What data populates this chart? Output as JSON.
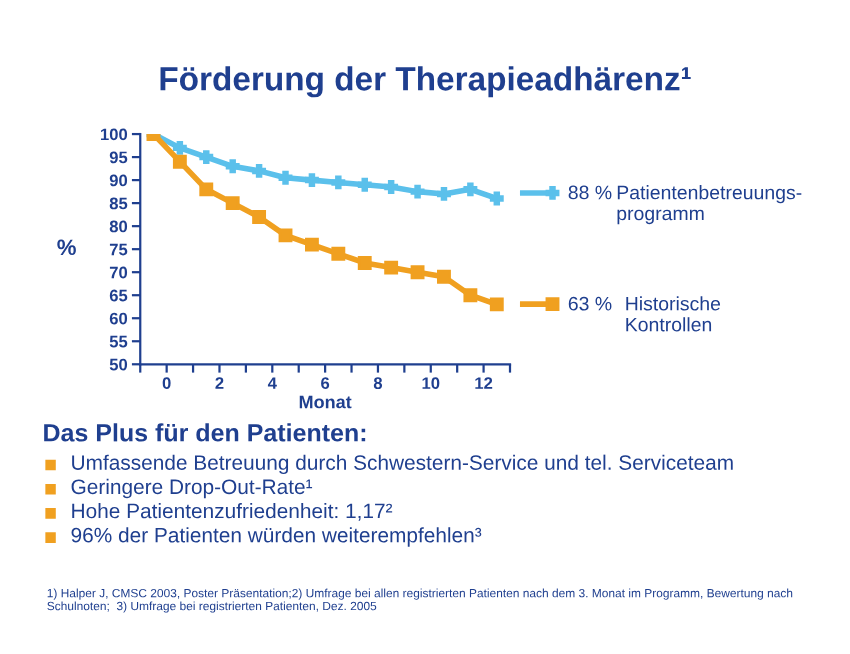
{
  "chart_data": {
    "type": "line",
    "title": "Förderung der Therapieadhärenz¹",
    "xlabel": "Monat",
    "ylabel": "%",
    "x": [
      -0.5,
      0.5,
      1.5,
      2.5,
      3.5,
      4.5,
      5.5,
      6.5,
      7.5,
      8.5,
      9.5,
      10.5,
      11.5,
      12.5
    ],
    "series": [
      {
        "name": "Patientenbetreuungs-\nprogramm",
        "color": "#5bc0eb",
        "marker": "cross",
        "values": [
          100,
          97,
          95,
          93,
          92,
          90.5,
          90,
          89.5,
          89,
          88.5,
          87.5,
          87,
          88,
          86
        ]
      },
      {
        "name": "Historische\nKontrollen",
        "color": "#f0a020",
        "marker": "square",
        "values": [
          100,
          94,
          88,
          85,
          82,
          78,
          76,
          74,
          72,
          71,
          70,
          69,
          65,
          63
        ]
      }
    ],
    "xlim": [
      -1,
      13
    ],
    "xticks": [
      {
        "value": -1,
        "label": null
      },
      0,
      {
        "value": 1,
        "label": null
      },
      2,
      {
        "value": 3,
        "label": null
      },
      4,
      {
        "value": 5,
        "label": null
      },
      6,
      {
        "value": 7,
        "label": null
      },
      8,
      {
        "value": 9,
        "label": null
      },
      10,
      {
        "value": 11,
        "label": null
      },
      12,
      {
        "value": 13,
        "label": null
      }
    ],
    "ylim": [
      50,
      100
    ],
    "yticks": [
      50,
      55,
      60,
      65,
      70,
      75,
      80,
      85,
      90,
      95,
      100
    ],
    "grid": false,
    "legend": "right",
    "line_style": "solid",
    "annotations": [
      "88 %",
      "63 %",
      "Das Plus für den Patienten:",
      "Umfassende Betreuung durch Schwestern-Service und tel. Serviceteam",
      "Geringere Drop-Out-Rate¹",
      "Hohe Patientenzufriedenheit: 1,17²",
      "96% der Patienten würden weiterempfehlen³",
      "1) Halper J, CMSC 2003, Poster Präsentation;2) Umfrage bei allen registrierten Patienten nach dem 3. Monat im Programm, Bewertung nach Schulnoten;  3) Umfrage bei registrierten Patienten, Dez. 2005"
    ]
  }
}
